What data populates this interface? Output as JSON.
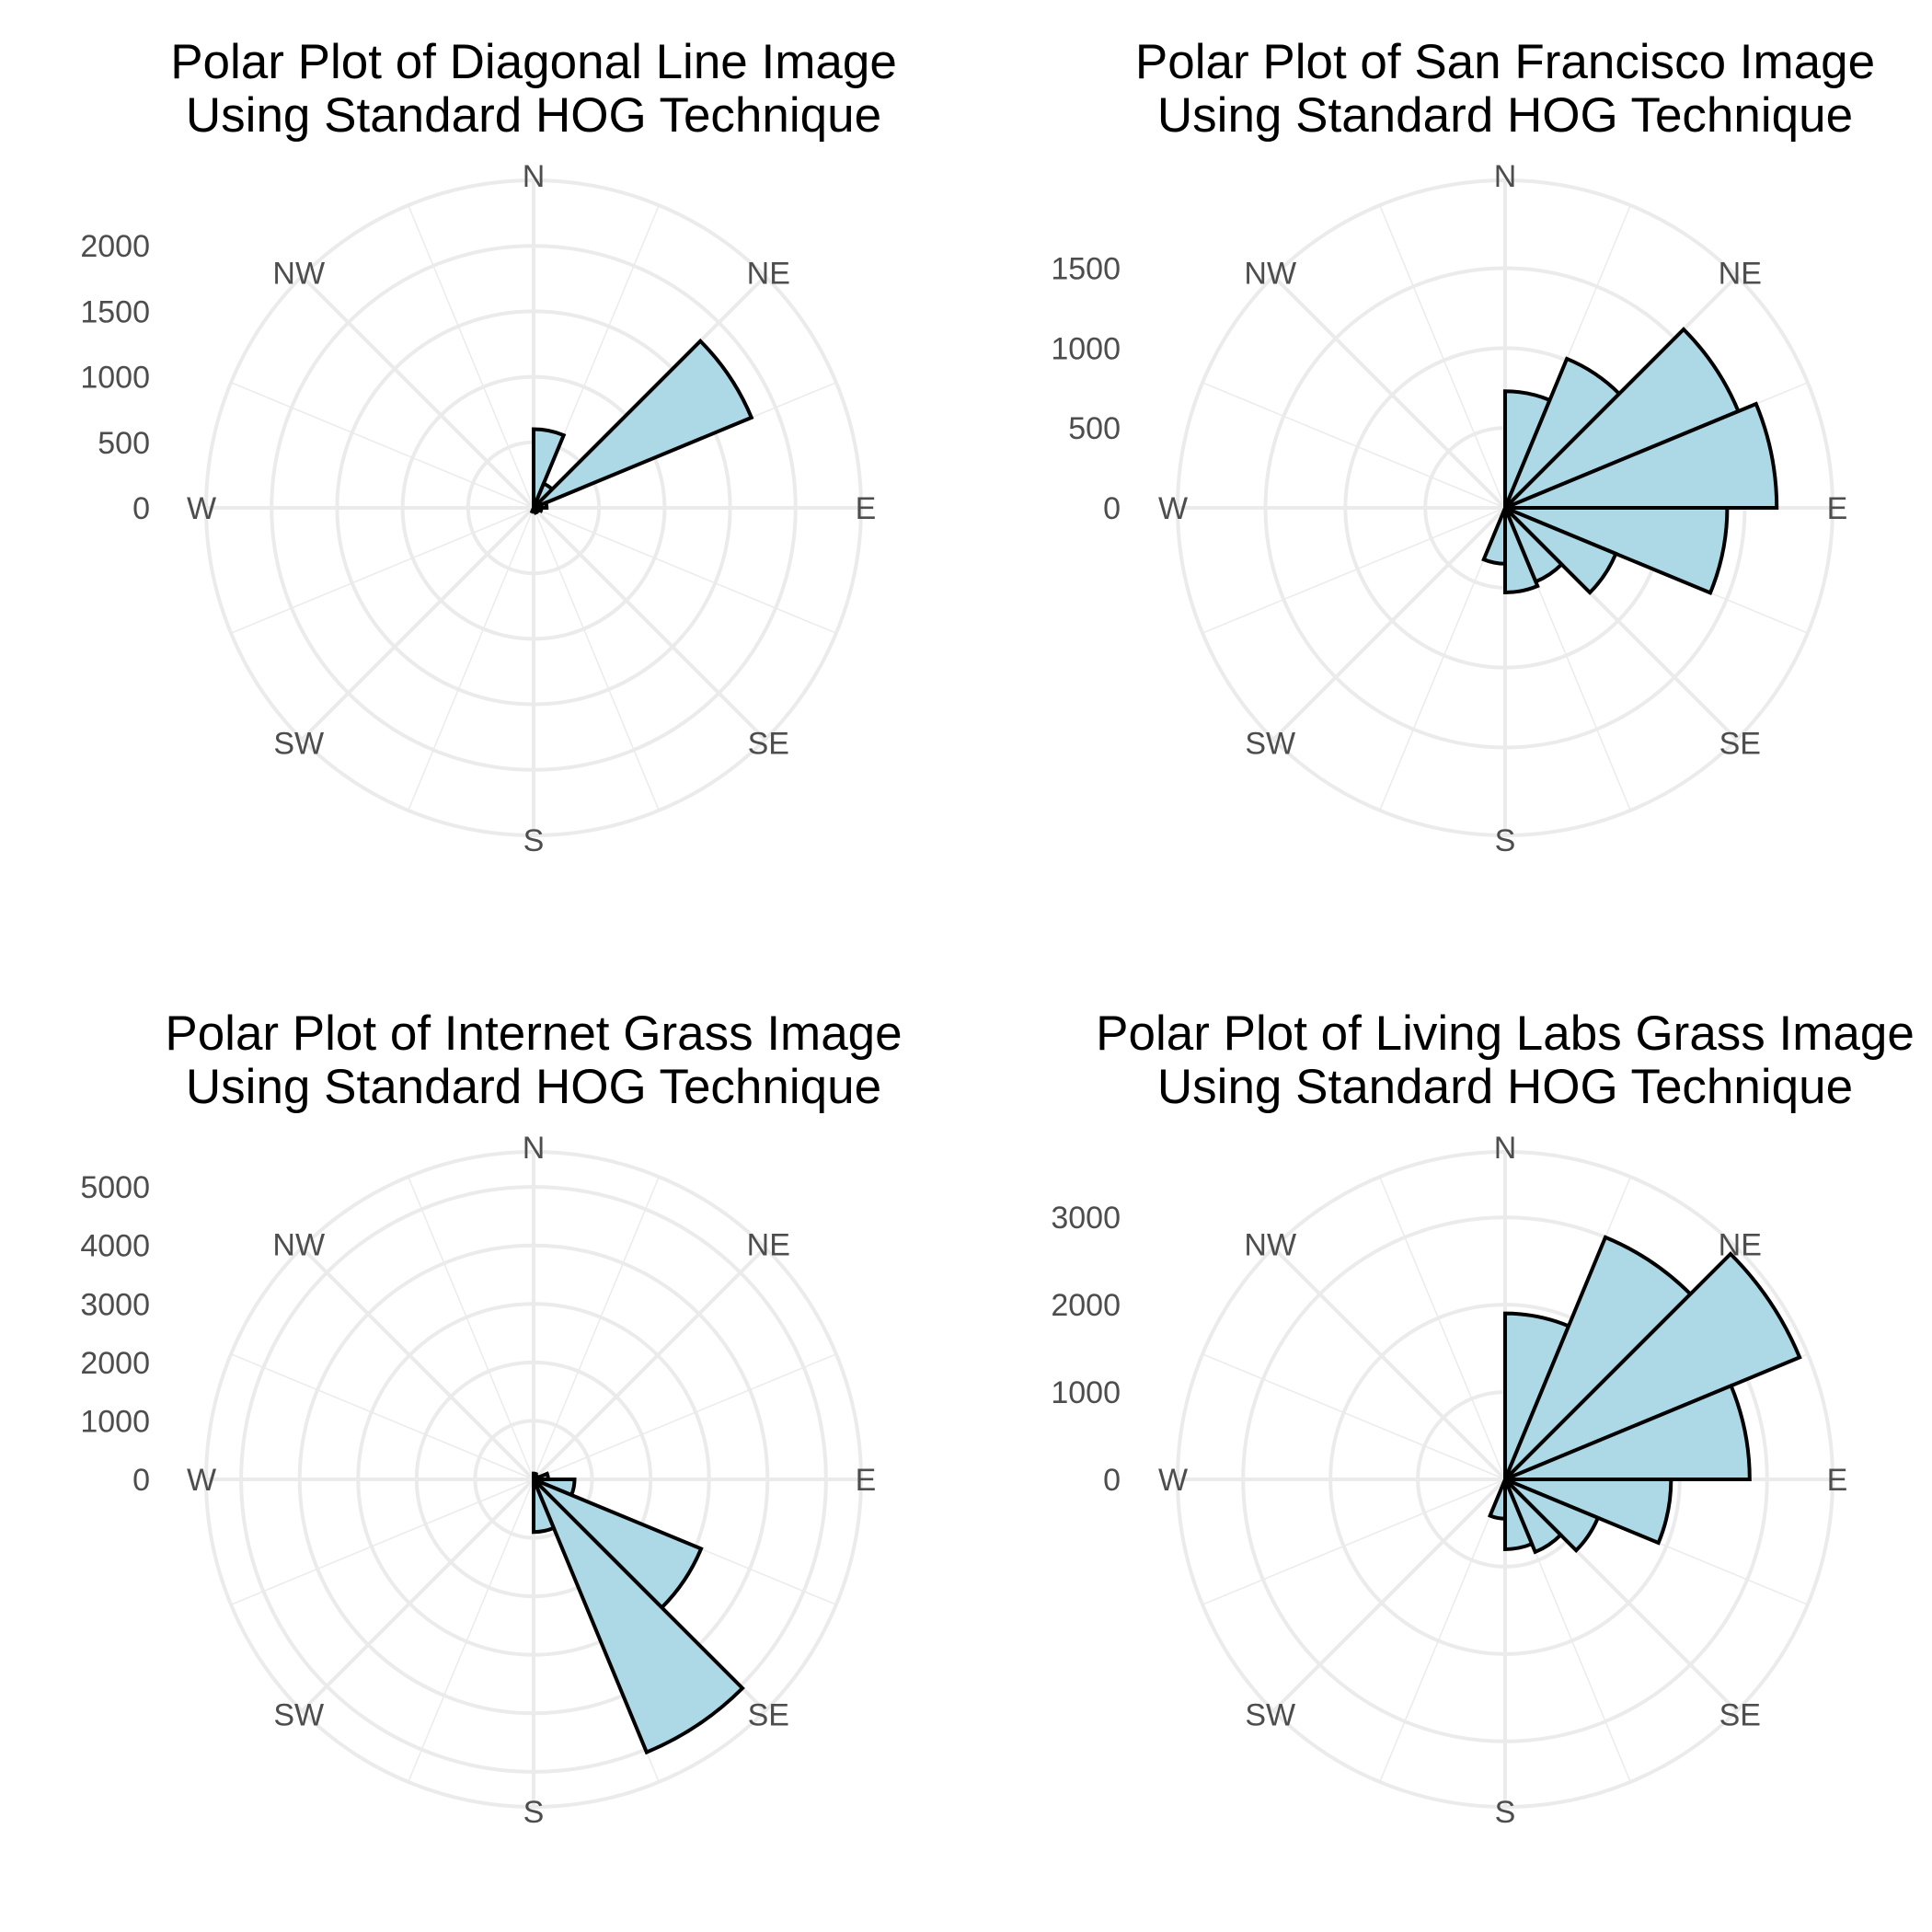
{
  "colors": {
    "fill": "#add8e6",
    "outline": "#000000",
    "grid": "#ebebeb",
    "axis_text": "#4d4d4d",
    "title_text": "#000000"
  },
  "chart_data": [
    {
      "type": "polar_bar",
      "title_lines": [
        "Polar Plot of Diagonal Line Image",
        "Using Standard HOG Technique"
      ],
      "directions": [
        "N",
        "NE",
        "E",
        "SE",
        "S",
        "SW",
        "W",
        "NW"
      ],
      "bin_start_angles_deg": [
        0,
        22.5,
        45,
        67.5,
        90,
        112.5,
        135,
        157.5,
        180,
        202.5,
        225,
        247.5,
        270,
        292.5,
        315,
        337.5
      ],
      "radial_ticks": [
        0,
        500,
        1000,
        1500,
        2000
      ],
      "r_max": 2500,
      "values": [
        600,
        200,
        1800,
        100,
        60,
        40,
        40,
        30,
        30,
        0,
        0,
        0,
        0,
        0,
        0,
        0
      ],
      "grid": true
    },
    {
      "type": "polar_bar",
      "title_lines": [
        "Polar Plot of San Francisco Image",
        "Using Standard HOG Technique"
      ],
      "directions": [
        "N",
        "NE",
        "E",
        "SE",
        "S",
        "SW",
        "W",
        "NW"
      ],
      "bin_start_angles_deg": [
        0,
        22.5,
        45,
        67.5,
        90,
        112.5,
        135,
        157.5,
        180,
        202.5,
        225,
        247.5,
        270,
        292.5,
        315,
        337.5
      ],
      "radial_ticks": [
        0,
        500,
        1000,
        1500
      ],
      "r_max": 2050,
      "values": [
        730,
        1010,
        1580,
        1700,
        1390,
        750,
        500,
        530,
        350,
        0,
        0,
        0,
        0,
        0,
        0,
        0
      ],
      "grid": true
    },
    {
      "type": "polar_bar",
      "title_lines": [
        "Polar Plot of Internet Grass Image",
        "Using Standard HOG Technique"
      ],
      "directions": [
        "N",
        "NE",
        "E",
        "SE",
        "S",
        "SW",
        "W",
        "NW"
      ],
      "bin_start_angles_deg": [
        0,
        22.5,
        45,
        67.5,
        90,
        112.5,
        135,
        157.5,
        180,
        202.5,
        225,
        247.5,
        270,
        292.5,
        315,
        337.5
      ],
      "radial_ticks": [
        0,
        1000,
        2000,
        3000,
        4000,
        5000
      ],
      "r_max": 5600,
      "values": [
        100,
        80,
        50,
        250,
        700,
        3100,
        5050,
        900,
        0,
        0,
        0,
        0,
        0,
        0,
        0,
        0
      ],
      "grid": true
    },
    {
      "type": "polar_bar",
      "title_lines": [
        "Polar Plot of Living Labs Grass Image",
        "Using Standard HOG Technique"
      ],
      "directions": [
        "N",
        "NE",
        "E",
        "SE",
        "S",
        "SW",
        "W",
        "NW"
      ],
      "bin_start_angles_deg": [
        0,
        22.5,
        45,
        67.5,
        90,
        112.5,
        135,
        157.5,
        180,
        202.5,
        225,
        247.5,
        270,
        292.5,
        315,
        337.5
      ],
      "radial_ticks": [
        0,
        1000,
        2000,
        3000
      ],
      "r_max": 3750,
      "values": [
        1900,
        3000,
        3650,
        2800,
        1900,
        1150,
        900,
        800,
        450,
        0,
        0,
        0,
        0,
        0,
        0,
        0
      ],
      "grid": true
    }
  ]
}
